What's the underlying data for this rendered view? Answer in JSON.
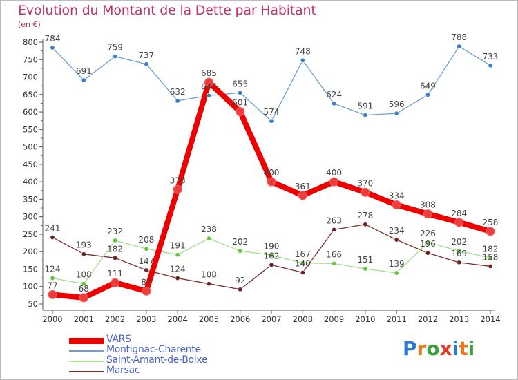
{
  "title": "Evolution du Montant de la Dette par Habitant",
  "unit": "(en €)",
  "brand": {
    "text": "Proxiti",
    "letters": [
      "P",
      "r",
      "o",
      "x",
      "i",
      "t",
      "i"
    ],
    "colors": [
      "#2b7bd1",
      "#e8791e",
      "#3aa13c",
      "#e23a2a",
      "#2b7bd1",
      "#e8791e",
      "#3aa13c"
    ]
  },
  "chart_data": {
    "type": "line",
    "title": "Evolution du Montant de la Dette par Habitant",
    "ylabel": "(en €)",
    "xlabel": "",
    "x": [
      "2000",
      "2001",
      "2002",
      "2003",
      "2004",
      "2005",
      "2006",
      "2007",
      "2008",
      "2009",
      "2010",
      "2011",
      "2012",
      "2013",
      "2014"
    ],
    "yticks": [
      "50",
      "100",
      "150",
      "200",
      "250",
      "300",
      "350",
      "400",
      "450",
      "500",
      "550",
      "600",
      "650",
      "700",
      "750",
      "800"
    ],
    "ylim": [
      50,
      800
    ],
    "grid": false,
    "legend_position": "bottom-left",
    "series": [
      {
        "name": "VARS",
        "color": "#ee0000",
        "marker": "#ee3d3d",
        "values": [
          77,
          68,
          111,
          87,
          378,
          685,
          601,
          400,
          361,
          400,
          370,
          334,
          308,
          284,
          258
        ]
      },
      {
        "name": "Montignac-Charente",
        "color": "#6c9fd2",
        "marker": "#3b80cf",
        "values": [
          784,
          691,
          759,
          737,
          632,
          647,
          655,
          574,
          748,
          624,
          591,
          596,
          649,
          788,
          733
        ]
      },
      {
        "name": "Saint-Amant-de-Boixe",
        "color": "#a4e08a",
        "marker": "#62c53c",
        "values": [
          124,
          108,
          232,
          208,
          191,
          238,
          202,
          190,
          167,
          166,
          151,
          139,
          226,
          202,
          182
        ]
      },
      {
        "name": "Marsac",
        "color": "#7a2f2f",
        "marker": "#6e2323",
        "values": [
          241,
          193,
          182,
          147,
          124,
          108,
          92,
          162,
          140,
          263,
          278,
          234,
          196,
          169,
          158
        ]
      }
    ],
    "data_labels": [
      [
        "77",
        "68",
        "111",
        "87",
        "378",
        "685",
        "601",
        "400",
        "361",
        "400",
        "370",
        "334",
        "308",
        "284",
        "258"
      ],
      [
        "784",
        "691",
        "759",
        "737",
        "632",
        "647",
        "655",
        "574",
        "748",
        "624",
        "591",
        "596",
        "649",
        "788",
        "733"
      ],
      [
        "124",
        "108",
        "232",
        "208",
        "191",
        "238",
        "202",
        "190",
        "167",
        "166",
        "151",
        "139",
        "226",
        "202",
        "182"
      ],
      [
        "241",
        "193",
        "182",
        "147",
        "124",
        "108",
        "92",
        "162",
        "140",
        "263",
        "278",
        "234",
        "196",
        "169",
        "158"
      ]
    ]
  }
}
